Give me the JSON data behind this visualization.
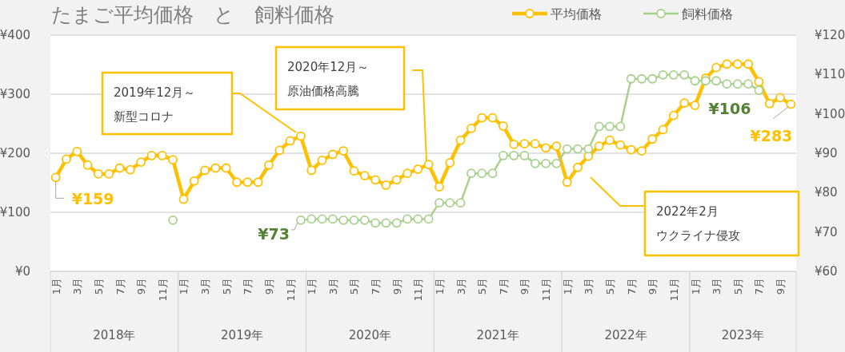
{
  "chart_data": {
    "type": "line",
    "title": "たまご平均価格　と　飼料価格",
    "categories": [
      "1月",
      null,
      "3月",
      null,
      "5月",
      null,
      "7月",
      null,
      "9月",
      null,
      "11月",
      null,
      "1月",
      null,
      "3月",
      null,
      "5月",
      null,
      "7月",
      null,
      "9月",
      null,
      "11月",
      null,
      "1月",
      null,
      "3月",
      null,
      "5月",
      null,
      "7月",
      null,
      "9月",
      null,
      "11月",
      null,
      "1月",
      null,
      "3月",
      null,
      "5月",
      null,
      "7月",
      null,
      "9月",
      null,
      "11月",
      null,
      "1月",
      null,
      "3月",
      null,
      "5月",
      null,
      "7月",
      null,
      "9月",
      null,
      "11月",
      null,
      "1月",
      null,
      "3月",
      null,
      "5月",
      null,
      "7月",
      null,
      "9月",
      null
    ],
    "series": [
      {
        "name": "平均価格",
        "color": "#ffc000",
        "values": [
          159,
          190,
          203,
          180,
          165,
          165,
          175,
          172,
          185,
          196,
          196,
          189,
          122,
          153,
          171,
          175,
          175,
          151,
          151,
          151,
          180,
          205,
          221,
          229,
          171,
          188,
          198,
          204,
          170,
          162,
          155,
          146,
          155,
          166,
          173,
          181,
          143,
          184,
          222,
          242,
          260,
          260,
          246,
          215,
          216,
          216,
          209,
          212,
          151,
          176,
          195,
          212,
          222,
          214,
          206,
          204,
          224,
          240,
          264,
          285,
          281,
          327,
          345,
          351,
          351,
          351,
          321,
          284,
          294,
          283
        ],
        "value_labels": [
          "¥159",
          null,
          null,
          null,
          null,
          null,
          null,
          null,
          null,
          null,
          null,
          null,
          null,
          null,
          null,
          null,
          null,
          null,
          null,
          null,
          null,
          null,
          null,
          null,
          null,
          null,
          null,
          null,
          null,
          null,
          null,
          null,
          null,
          null,
          null,
          null,
          null,
          null,
          null,
          null,
          null,
          null,
          null,
          null,
          null,
          null,
          null,
          null,
          null,
          null,
          null,
          null,
          null,
          null,
          null,
          null,
          null,
          null,
          null,
          null,
          null,
          null,
          null,
          null,
          null,
          null,
          null,
          null,
          null,
          "¥283"
        ]
      },
      {
        "name": "飼料価格",
        "color": "#a9d18e",
        "axis": "y2",
        "values": [
          null,
          null,
          null,
          null,
          null,
          null,
          null,
          null,
          null,
          null,
          null,
          73,
          null,
          null,
          null,
          null,
          null,
          null,
          null,
          null,
          null,
          null,
          null,
          73,
          73.3,
          73.3,
          73.3,
          73,
          73,
          73,
          72.3,
          72.3,
          72.3,
          73.3,
          73.3,
          73.3,
          77.4,
          77.4,
          77.4,
          84.9,
          84.9,
          84.9,
          89.4,
          89.4,
          89.4,
          87.4,
          87.4,
          87.4,
          91.1,
          91.1,
          91.1,
          96.8,
          96.8,
          96.8,
          108.9,
          108.9,
          108.9,
          109.9,
          109.9,
          109.9,
          108.4,
          108.4,
          108.4,
          107.6,
          107.6,
          107.6,
          106,
          null,
          null,
          null
        ],
        "value_labels": [
          null,
          null,
          null,
          null,
          null,
          null,
          null,
          null,
          null,
          null,
          null,
          null,
          null,
          null,
          null,
          null,
          null,
          null,
          null,
          null,
          null,
          null,
          null,
          "¥73",
          null,
          null,
          null,
          null,
          null,
          null,
          null,
          null,
          null,
          null,
          null,
          null,
          null,
          null,
          null,
          null,
          null,
          null,
          null,
          null,
          null,
          null,
          null,
          null,
          null,
          null,
          null,
          null,
          null,
          null,
          null,
          null,
          null,
          null,
          null,
          null,
          null,
          null,
          null,
          null,
          null,
          null,
          "¥106",
          null,
          null,
          null
        ]
      }
    ],
    "ylim": [
      0,
      400
    ],
    "yticks": [
      {
        "value": 0,
        "label": "¥0"
      },
      {
        "value": 100,
        "label": "¥100"
      },
      {
        "value": 200,
        "label": "¥200"
      },
      {
        "value": 300,
        "label": "¥300"
      },
      {
        "value": 400,
        "label": "¥400"
      }
    ],
    "y2lim": [
      60,
      120
    ],
    "y2ticks": [
      {
        "value": 60,
        "label": "¥60"
      },
      {
        "value": 70,
        "label": "¥70"
      },
      {
        "value": 80,
        "label": "¥80"
      },
      {
        "value": 90,
        "label": "¥90"
      },
      {
        "value": 100,
        "label": "¥100"
      },
      {
        "value": 110,
        "label": "¥110"
      },
      {
        "value": 120,
        "label": "¥120"
      }
    ],
    "grid": "y",
    "legend": "top right",
    "marker": "circle",
    "line_style": "solid",
    "annotations": [
      "2018年",
      "2019年",
      "2020年",
      "2021年",
      "2022年",
      "2023年",
      "2019年12月～新型コロナ",
      "2020年12月～原油価格高騰",
      "2022年2月ウクライナ侵攻"
    ]
  }
}
